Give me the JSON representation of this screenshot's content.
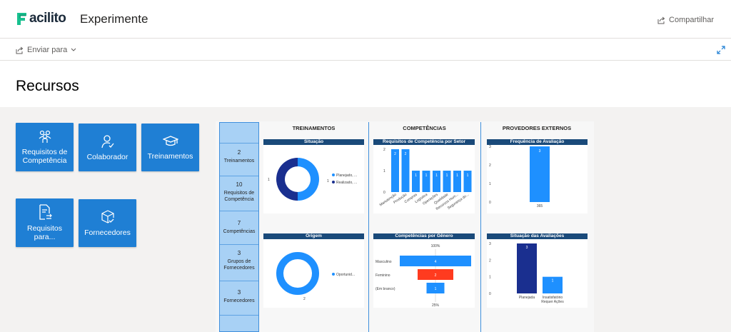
{
  "header": {
    "logo_text": "acilito",
    "app_title": "Experimente",
    "share_label": "Compartilhar"
  },
  "toolbar": {
    "send_label": "Enviar para"
  },
  "page": {
    "title": "Recursos"
  },
  "tiles": [
    {
      "label": "Requisitos de Competência",
      "icon": "users-award-icon"
    },
    {
      "label": "Colaborador",
      "icon": "user-check-icon"
    },
    {
      "label": "Treinamentos",
      "icon": "graduation-cap-icon"
    },
    {
      "label": "Requisitos para...",
      "icon": "document-exchange-icon"
    },
    {
      "label": "Fornecedores",
      "icon": "box-check-icon"
    }
  ],
  "kpis": [
    {
      "value": "2",
      "label": "Treinamentos"
    },
    {
      "value": "10",
      "label": "Requisitos de Competência"
    },
    {
      "value": "7",
      "label": "Competências"
    },
    {
      "value": "3",
      "label": "Grupos de Fornecedores"
    },
    {
      "value": "3",
      "label": "Fornecedores"
    }
  ],
  "sections": {
    "treinamentos": "TREINAMENTOS",
    "competencias": "COMPETÊNCIAS",
    "provedores": "PROVEDORES EXTERNOS"
  },
  "colors": {
    "accent": "#1f7fd4",
    "dark_blue": "#1a2f8f",
    "light_blue": "#1e90ff",
    "red": "#ff3b1f",
    "header_bar": "#1a4a7a"
  },
  "chart_data": [
    {
      "type": "pie",
      "title": "Situação",
      "categories": [
        "Planejado, ...",
        "Realizado, ..."
      ],
      "values": [
        1,
        1
      ],
      "colors": [
        "#1e90ff",
        "#1a2f8f"
      ],
      "data_labels": [
        "1",
        "1"
      ]
    },
    {
      "type": "pie",
      "title": "Origem",
      "categories": [
        "Oportunid..."
      ],
      "values": [
        2
      ],
      "colors": [
        "#1e90ff"
      ],
      "data_labels": [
        "2"
      ]
    },
    {
      "type": "bar",
      "title": "Requisitos de Competência por Setor",
      "categories": [
        "Manutenção",
        "Produção",
        "Compras",
        "Logística",
        "Operações",
        "Qualidade",
        "Recursos Hum...",
        "Segurança do..."
      ],
      "values": [
        2,
        2,
        1,
        1,
        1,
        1,
        1,
        1
      ],
      "ylim": [
        0,
        2
      ],
      "yticks": [
        "0",
        "1",
        "2"
      ]
    },
    {
      "type": "bar",
      "title": "Competências por Gênero",
      "categories": [
        "Masculino",
        "Feminino",
        "(Em branco)"
      ],
      "values": [
        4,
        2,
        1
      ],
      "colors": [
        "#1e90ff",
        "#ff3b1f",
        "#1e90ff"
      ],
      "top_label": "100%",
      "bottom_label": "25%"
    },
    {
      "type": "bar",
      "title": "Frequência de Avaliação",
      "categories": [
        "365"
      ],
      "values": [
        3
      ],
      "ylim": [
        0,
        3
      ],
      "yticks": [
        "0",
        "1",
        "2",
        "3"
      ]
    },
    {
      "type": "bar",
      "title": "Situação das Avaliações",
      "categories": [
        "Planejada",
        "Insatisfatório Requer Ações"
      ],
      "values": [
        3,
        1
      ],
      "colors": [
        "#1a2f8f",
        "#1e90ff"
      ],
      "ylim": [
        0,
        3
      ],
      "yticks": [
        "0",
        "1",
        "2",
        "3"
      ]
    }
  ]
}
